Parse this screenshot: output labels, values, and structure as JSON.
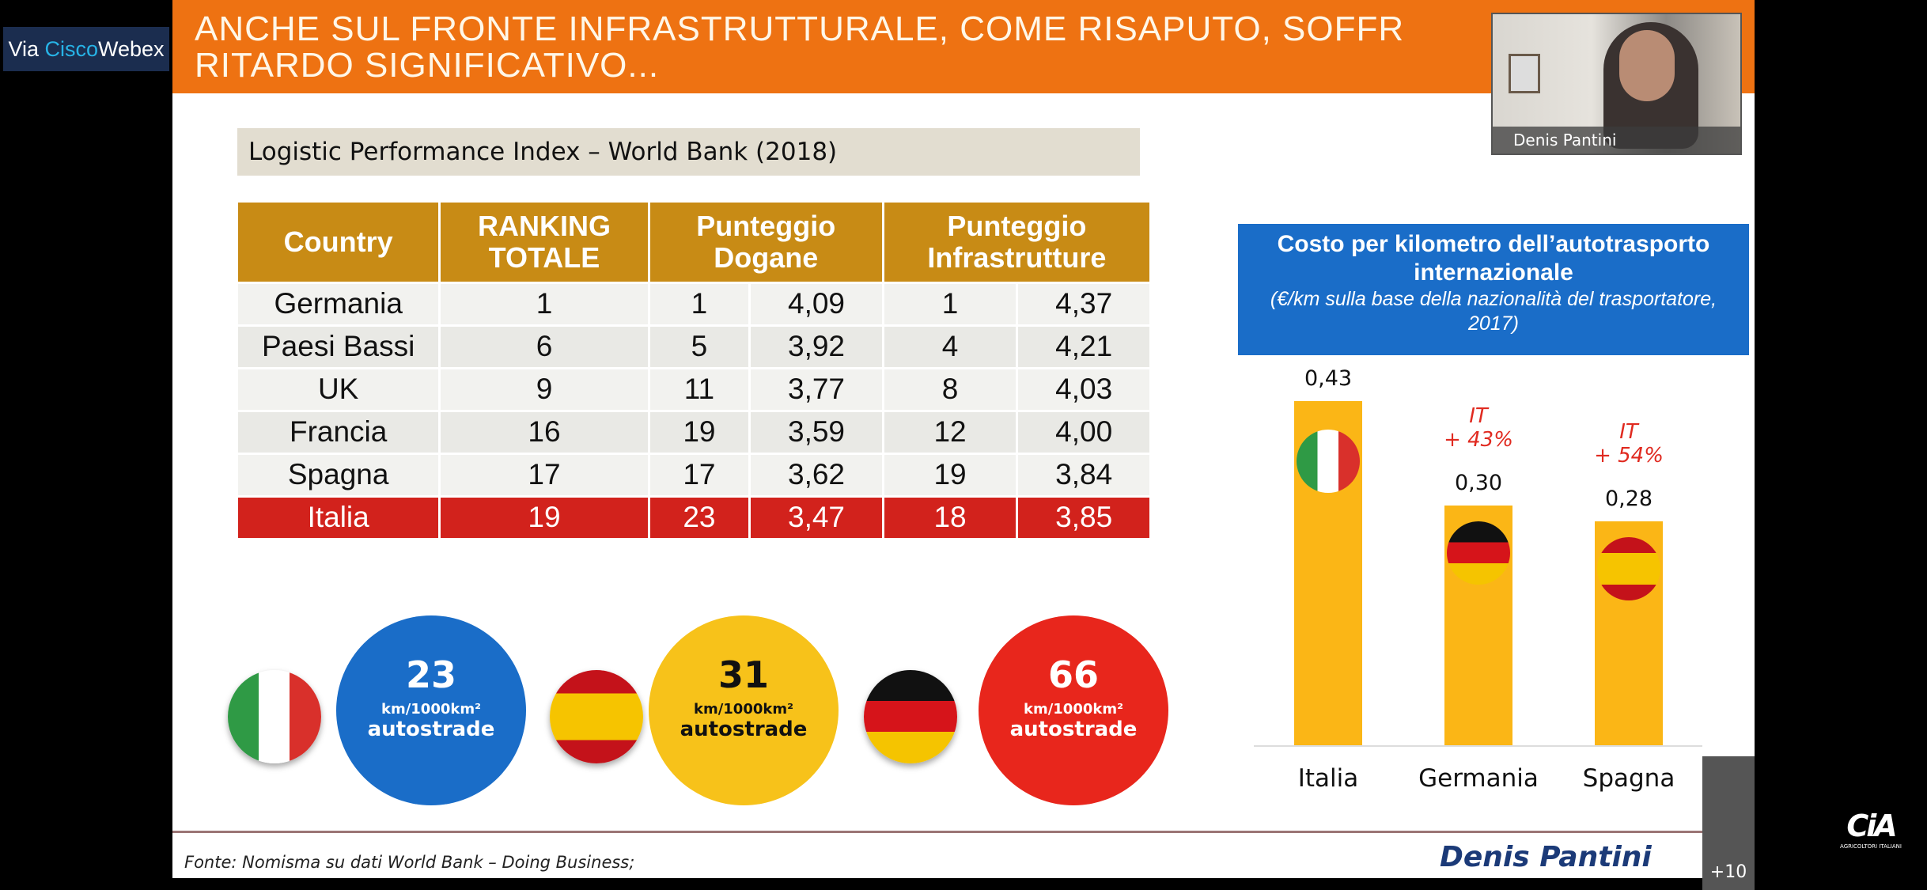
{
  "header": {
    "title_line1": "ANCHE SUL FRONTE INFRASTRUTTURALE, COME RISAPUTO, SOFFR",
    "title_line2": "RITARDO SIGNIFICATIVO..."
  },
  "webex": {
    "via": "Via ",
    "cisco": "Cisco",
    "webex": "Webex"
  },
  "video": {
    "participant_name": "Denis Pantini"
  },
  "lpi": {
    "title": "Logistic Performance Index – World Bank (2018)",
    "headers": [
      "Country",
      "RANKING TOTALE",
      "Punteggio Dogane",
      "Punteggio Infrastrutture"
    ],
    "rows": [
      [
        "Germania",
        "1",
        "1",
        "4,09",
        "1",
        "4,37"
      ],
      [
        "Paesi Bassi",
        "6",
        "5",
        "3,92",
        "4",
        "4,21"
      ],
      [
        "UK",
        "9",
        "11",
        "3,77",
        "8",
        "4,03"
      ],
      [
        "Francia",
        "16",
        "19",
        "3,59",
        "12",
        "4,00"
      ],
      [
        "Spagna",
        "17",
        "17",
        "3,62",
        "19",
        "3,84"
      ],
      [
        "Italia",
        "19",
        "23",
        "3,47",
        "18",
        "3,85"
      ]
    ]
  },
  "highways": [
    {
      "country": "Italia",
      "value": "23",
      "unit": "km/1000km²",
      "label": "autostrade",
      "color": "#1a6dc8"
    },
    {
      "country": "Spagna",
      "value": "31",
      "unit": "km/1000km²",
      "label": "autostrade",
      "color": "#f7c21a"
    },
    {
      "country": "Germania",
      "value": "66",
      "unit": "km/1000km²",
      "label": "autostrade",
      "color": "#e8261c"
    }
  ],
  "chart_data": {
    "type": "bar",
    "title": "Costo per kilometro dell’autotrasporto internazionale",
    "subtitle": "(€/km sulla base della nazionalità del trasportatore, 2017)",
    "categories": [
      "Italia",
      "Germania",
      "Spagna"
    ],
    "values": [
      0.43,
      0.3,
      0.28
    ],
    "value_labels": [
      "0,43",
      "0,30",
      "0,28"
    ],
    "annotations": [
      "",
      "IT\n+ 43%",
      "IT\n+ 54%"
    ],
    "bar_color": "#fbb616",
    "ylim": [
      0,
      0.43
    ]
  },
  "footer": {
    "source": "Fonte: Nomisma su dati World Bank – Doing Business;",
    "author": "Denis Pantini",
    "more_participants": "+10",
    "logo_text": "AGRICOLTORI ITALIANI"
  }
}
